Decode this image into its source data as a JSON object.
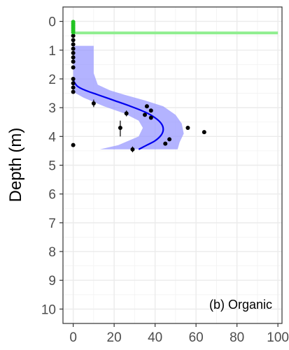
{
  "chart_data": {
    "type": "scatter",
    "title": "",
    "annotation": "(b) Organic",
    "xlabel": "",
    "ylabel": "Depth (m)",
    "xlim": [
      -5,
      102
    ],
    "ylim": [
      10.5,
      -0.5
    ],
    "y_reversed": true,
    "grid": true,
    "x_ticks": [
      0,
      20,
      40,
      60,
      80,
      100
    ],
    "x_tick_labels": [
      "0",
      "20",
      "40",
      "60",
      "80",
      "100"
    ],
    "y_ticks": [
      0,
      1,
      2,
      3,
      4,
      5,
      6,
      7,
      8,
      9,
      10
    ],
    "y_tick_labels": [
      "0",
      "1",
      "2",
      "3",
      "4",
      "5",
      "6",
      "7",
      "8",
      "9",
      "10"
    ],
    "series": [
      {
        "kind": "green_points",
        "color": "#22c422",
        "points": [
          [
            0,
            0.02
          ],
          [
            0,
            0.08
          ],
          [
            0,
            0.14
          ],
          [
            0,
            0.2
          ],
          [
            0,
            0.26
          ],
          [
            0,
            0.32
          ],
          [
            0,
            0.38
          ]
        ]
      },
      {
        "kind": "green_line",
        "color": "#90ee90",
        "y": 0.4,
        "x_range": [
          0,
          100
        ]
      },
      {
        "kind": "black_points",
        "color": "#000000",
        "points": [
          [
            0,
            0.5
          ],
          [
            0,
            0.65
          ],
          [
            0,
            0.8
          ],
          [
            0,
            0.95
          ],
          [
            0,
            1.1
          ],
          [
            0,
            1.25
          ],
          [
            0,
            1.4
          ],
          [
            0,
            1.6
          ],
          [
            0,
            2.0
          ],
          [
            0,
            2.15
          ],
          [
            0,
            2.3
          ],
          [
            0,
            2.45
          ],
          [
            10,
            2.85
          ],
          [
            36,
            2.95
          ],
          [
            38,
            3.1
          ],
          [
            26,
            3.2
          ],
          [
            35,
            3.25
          ],
          [
            38,
            3.35
          ],
          [
            23,
            3.7
          ],
          [
            56,
            3.7
          ],
          [
            64,
            3.85
          ],
          [
            47,
            4.1
          ],
          [
            45,
            4.25
          ],
          [
            0,
            4.3
          ],
          [
            29,
            4.45
          ]
        ],
        "error_bars": [
          [
            10,
            2.72,
            2.98
          ],
          [
            26,
            3.1,
            3.3
          ],
          [
            23,
            3.45,
            4.0
          ],
          [
            29,
            4.35,
            4.55
          ],
          [
            35,
            3.2,
            3.3
          ]
        ]
      },
      {
        "kind": "smooth_fit",
        "color": "#0000ee",
        "line": [
          [
            0,
            2.05
          ],
          [
            2,
            2.25
          ],
          [
            6,
            2.4
          ],
          [
            12,
            2.55
          ],
          [
            20,
            2.75
          ],
          [
            28,
            2.95
          ],
          [
            35,
            3.15
          ],
          [
            40,
            3.35
          ],
          [
            43,
            3.55
          ],
          [
            44,
            3.75
          ],
          [
            43,
            3.95
          ],
          [
            40,
            4.15
          ],
          [
            36,
            4.3
          ],
          [
            32,
            4.45
          ]
        ]
      },
      {
        "kind": "confidence_band",
        "color": "#9999ff",
        "upper": [
          [
            10,
            0.85
          ],
          [
            10,
            1.8
          ],
          [
            12,
            2.2
          ],
          [
            18,
            2.4
          ],
          [
            25,
            2.55
          ],
          [
            35,
            2.75
          ],
          [
            44,
            2.95
          ],
          [
            50,
            3.25
          ],
          [
            53,
            3.55
          ],
          [
            54,
            3.9
          ],
          [
            52,
            4.2
          ],
          [
            51,
            4.45
          ]
        ],
        "lower": [
          [
            0,
            0.85
          ],
          [
            0,
            1.6
          ],
          [
            0,
            2.2
          ],
          [
            0,
            2.45
          ],
          [
            5,
            2.65
          ],
          [
            15,
            2.95
          ],
          [
            25,
            3.2
          ],
          [
            32,
            3.45
          ],
          [
            34,
            3.7
          ],
          [
            32,
            4.0
          ],
          [
            22,
            4.3
          ],
          [
            13,
            4.45
          ]
        ]
      }
    ]
  }
}
